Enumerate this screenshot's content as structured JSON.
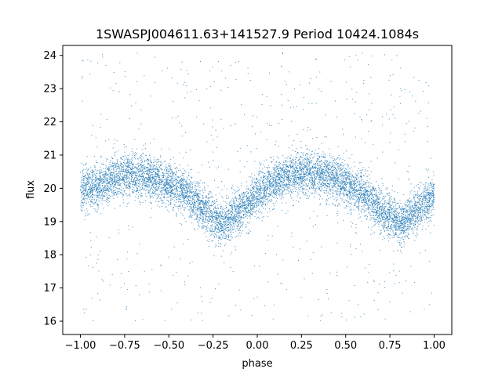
{
  "chart_data": {
    "type": "scatter",
    "title": "1SWASPJ004611.63+141527.9 Period 10424.1084s",
    "xlabel": "phase",
    "ylabel": "flux",
    "xlim": [
      -1.1,
      1.1
    ],
    "ylim": [
      15.6,
      24.3
    ],
    "xticks": [
      -1.0,
      -0.75,
      -0.5,
      -0.25,
      0.0,
      0.25,
      0.5,
      0.75,
      1.0
    ],
    "xtick_labels": [
      "−1.00",
      "−0.75",
      "−0.50",
      "−0.25",
      "0.00",
      "0.25",
      "0.50",
      "0.75",
      "1.00"
    ],
    "yticks": [
      16,
      17,
      18,
      19,
      20,
      21,
      22,
      23,
      24
    ],
    "ytick_labels": [
      "16",
      "17",
      "18",
      "19",
      "20",
      "21",
      "22",
      "23",
      "24"
    ],
    "grid": false,
    "legend": "none",
    "marker_color": "#1f77b4",
    "series": [
      {
        "phase_range": [
          -1.0,
          1.0
        ],
        "flux_range": [
          16.0,
          24.1
        ],
        "trend_x": [
          -1.0,
          -0.9,
          -0.8,
          -0.7,
          -0.6,
          -0.5,
          -0.4,
          -0.3,
          -0.2,
          -0.1,
          0.0,
          0.1,
          0.2,
          0.3,
          0.4,
          0.5,
          0.6,
          0.7,
          0.8,
          0.9,
          1.0
        ],
        "trend_y": [
          19.9,
          20.1,
          20.35,
          20.45,
          20.35,
          20.15,
          19.85,
          19.35,
          18.95,
          19.3,
          19.8,
          20.2,
          20.4,
          20.5,
          20.4,
          20.15,
          19.8,
          19.35,
          18.95,
          19.3,
          19.8
        ]
      }
    ]
  }
}
